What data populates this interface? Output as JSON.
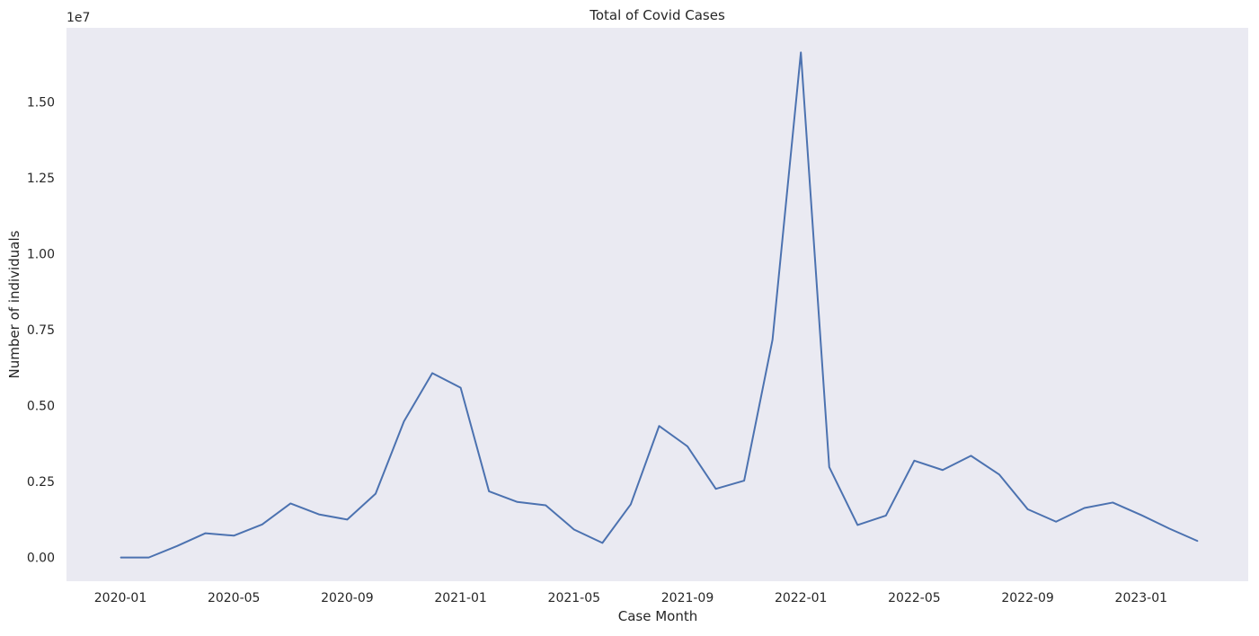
{
  "chart_data": {
    "type": "line",
    "title": "Total of Covid Cases",
    "xlabel": "Case Month",
    "ylabel": "Number of individuals",
    "y_offset_label": "1e7",
    "y_scale_multiplier": 10000000,
    "grid": false,
    "colors": {
      "line": "#4c72b0",
      "plot_background": "#eaeaf2"
    },
    "x_ticks": [
      "2020-01",
      "2020-05",
      "2020-09",
      "2021-01",
      "2021-05",
      "2021-09",
      "2022-01",
      "2022-05",
      "2022-09",
      "2023-01"
    ],
    "y_ticks": [
      "0.00",
      "0.25",
      "0.50",
      "0.75",
      "1.00",
      "1.25",
      "1.50"
    ],
    "x": [
      "2020-01",
      "2020-02",
      "2020-03",
      "2020-04",
      "2020-05",
      "2020-06",
      "2020-07",
      "2020-08",
      "2020-09",
      "2020-10",
      "2020-11",
      "2020-12",
      "2021-01",
      "2021-02",
      "2021-03",
      "2021-04",
      "2021-05",
      "2021-06",
      "2021-07",
      "2021-08",
      "2021-09",
      "2021-10",
      "2021-11",
      "2021-12",
      "2022-01",
      "2022-02",
      "2022-03",
      "2022-04",
      "2022-05",
      "2022-06",
      "2022-07",
      "2022-08",
      "2022-09",
      "2022-10",
      "2022-11",
      "2022-12",
      "2023-01",
      "2023-02",
      "2023-03"
    ],
    "series": [
      {
        "values": [
          0,
          0,
          380000,
          800000,
          720000,
          1090000,
          1780000,
          1420000,
          1250000,
          2100000,
          4480000,
          6070000,
          5590000,
          2180000,
          1830000,
          1720000,
          920000,
          480000,
          1750000,
          4330000,
          3660000,
          2260000,
          2530000,
          7170000,
          16630000,
          2980000,
          1070000,
          1380000,
          3190000,
          2880000,
          3350000,
          2730000,
          1590000,
          1180000,
          1630000,
          1810000,
          1400000,
          950000,
          540000
        ]
      }
    ],
    "ylim": [
      -780000,
      17440000
    ]
  }
}
